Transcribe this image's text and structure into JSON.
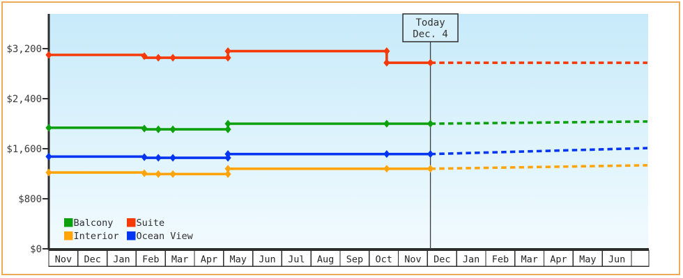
{
  "theme": {
    "frame_border": "#eeab57",
    "plot_gradient_top": "#c7eafa",
    "plot_gradient_bottom": "#f2fbfe",
    "axis_color": "#2d2d2d",
    "text_color": "#3a3a3a"
  },
  "chart_data": {
    "type": "line",
    "title": "",
    "y_axis": {
      "ticks": [
        {
          "label": "$0",
          "value": 0
        },
        {
          "label": "$800",
          "value": 800
        },
        {
          "label": "$1,600",
          "value": 1600
        },
        {
          "label": "$2,400",
          "value": 2400
        },
        {
          "label": "$3,200",
          "value": 3200
        }
      ],
      "ylim": [
        0,
        3755
      ]
    },
    "x_axis": {
      "months": [
        "Nov",
        "Dec",
        "Jan",
        "Feb",
        "Mar",
        "Apr",
        "May",
        "Jun",
        "Jul",
        "Aug",
        "Sep",
        "Oct",
        "Nov",
        "Dec",
        "Jan",
        "Feb",
        "Mar",
        "Apr",
        "May",
        "Jun"
      ],
      "trailing_blank_cell": true
    },
    "today_marker": {
      "line1": "Today",
      "line2": "Dec. 4",
      "month_index": 13.1
    },
    "projection_end_index": 20.55,
    "series": [
      {
        "name": "Suite",
        "color": "#f63908",
        "solid": [
          [
            0,
            3100
          ],
          [
            3.28,
            3100
          ],
          [
            3.28,
            3055
          ],
          [
            6.15,
            3055
          ],
          [
            6.15,
            3160
          ],
          [
            11.6,
            3160
          ],
          [
            11.6,
            2975
          ],
          [
            13.1,
            2975
          ]
        ],
        "projected": [
          [
            13.1,
            2975
          ],
          [
            20.55,
            2975
          ]
        ],
        "markers": [
          [
            0,
            3100
          ],
          [
            3.28,
            3080
          ],
          [
            3.76,
            3055
          ],
          [
            4.26,
            3055
          ],
          [
            6.15,
            3055
          ],
          [
            6.15,
            3160
          ],
          [
            11.6,
            3160
          ],
          [
            11.6,
            2975
          ],
          [
            13.1,
            2975
          ]
        ]
      },
      {
        "name": "Balcony",
        "color": "#0da00d",
        "solid": [
          [
            0,
            1935
          ],
          [
            3.28,
            1935
          ],
          [
            3.28,
            1910
          ],
          [
            6.15,
            1910
          ],
          [
            6.15,
            2000
          ],
          [
            13.1,
            2000
          ]
        ],
        "projected": [
          [
            13.1,
            2000
          ],
          [
            20.55,
            2035
          ]
        ],
        "markers": [
          [
            0,
            1935
          ],
          [
            3.28,
            1922
          ],
          [
            3.76,
            1910
          ],
          [
            4.26,
            1910
          ],
          [
            6.15,
            1910
          ],
          [
            6.15,
            2000
          ],
          [
            11.6,
            2000
          ],
          [
            13.1,
            2000
          ]
        ]
      },
      {
        "name": "Ocean View",
        "color": "#0435f0",
        "solid": [
          [
            0,
            1475
          ],
          [
            3.28,
            1475
          ],
          [
            3.28,
            1455
          ],
          [
            6.15,
            1455
          ],
          [
            6.15,
            1515
          ],
          [
            13.1,
            1515
          ]
        ],
        "projected": [
          [
            13.1,
            1515
          ],
          [
            20.55,
            1610
          ]
        ],
        "markers": [
          [
            0,
            1475
          ],
          [
            3.28,
            1465
          ],
          [
            3.76,
            1455
          ],
          [
            4.26,
            1455
          ],
          [
            6.15,
            1455
          ],
          [
            6.15,
            1515
          ],
          [
            11.6,
            1515
          ],
          [
            13.1,
            1515
          ]
        ]
      },
      {
        "name": "Interior",
        "color": "#ffa40a",
        "solid": [
          [
            0,
            1220
          ],
          [
            3.28,
            1220
          ],
          [
            3.28,
            1195
          ],
          [
            6.15,
            1195
          ],
          [
            6.15,
            1280
          ],
          [
            13.1,
            1280
          ]
        ],
        "projected": [
          [
            13.1,
            1280
          ],
          [
            20.55,
            1335
          ]
        ],
        "markers": [
          [
            0,
            1220
          ],
          [
            3.28,
            1208
          ],
          [
            3.76,
            1195
          ],
          [
            4.26,
            1195
          ],
          [
            6.15,
            1195
          ],
          [
            6.15,
            1280
          ],
          [
            11.6,
            1280
          ],
          [
            13.1,
            1280
          ]
        ]
      }
    ],
    "legend": {
      "items": [
        {
          "label": "Balcony",
          "color": "#0da00d"
        },
        {
          "label": "Suite",
          "color": "#f63908"
        },
        {
          "label": "Interior",
          "color": "#ffa40a"
        },
        {
          "label": "Ocean View",
          "color": "#0435f0"
        }
      ]
    }
  }
}
